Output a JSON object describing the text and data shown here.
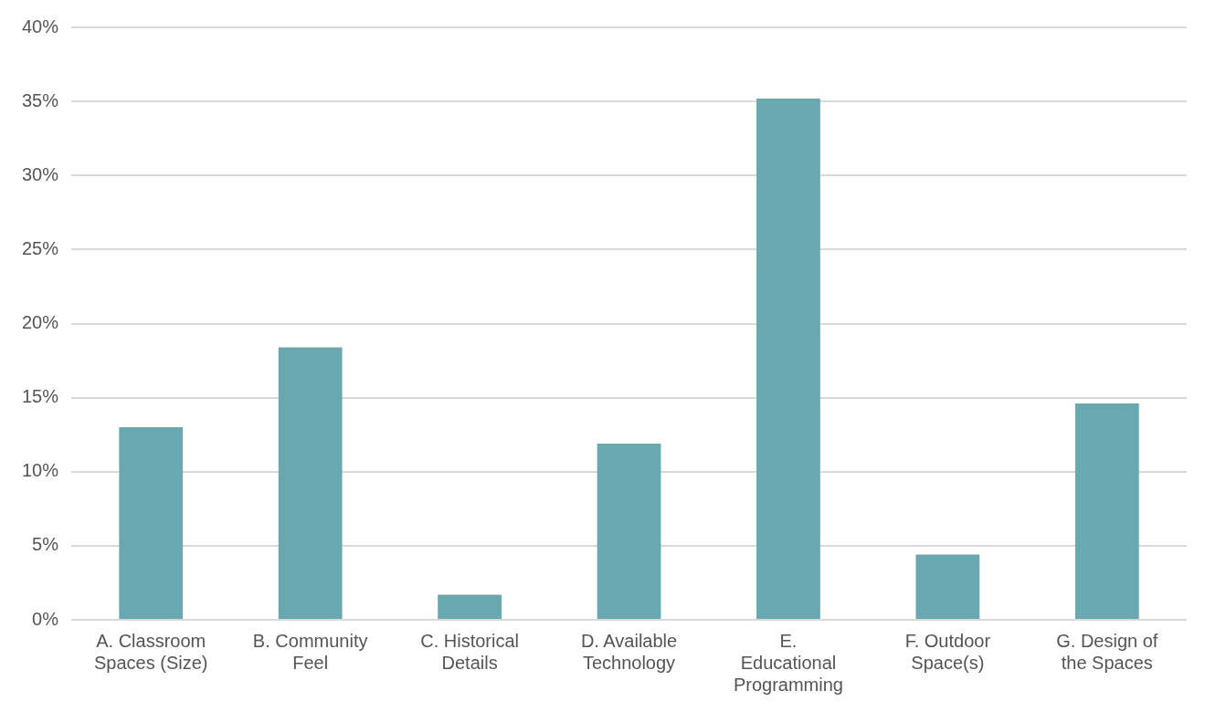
{
  "chart_data": {
    "type": "bar",
    "categories": [
      "A. Classroom Spaces (Size)",
      "B. Community Feel",
      "C. Historical Details",
      "D. Available Technology",
      "E. Educational Programming",
      "F. Outdoor Space(s)",
      "G. Design of the Spaces"
    ],
    "values": [
      13.0,
      18.4,
      1.7,
      11.9,
      35.2,
      4.4,
      14.6
    ],
    "color": "#68a9b1",
    "ylim": [
      0,
      40
    ],
    "yticks": [
      {
        "value": 0,
        "label": "0%"
      },
      {
        "value": 5,
        "label": "5%"
      },
      {
        "value": 10,
        "label": "10%"
      },
      {
        "value": 15,
        "label": "15%"
      },
      {
        "value": 20,
        "label": "20%"
      },
      {
        "value": 25,
        "label": "25%"
      },
      {
        "value": 30,
        "label": "30%"
      },
      {
        "value": 35,
        "label": "35%"
      },
      {
        "value": 40,
        "label": "40%"
      }
    ],
    "grid": "y",
    "legend": false
  }
}
